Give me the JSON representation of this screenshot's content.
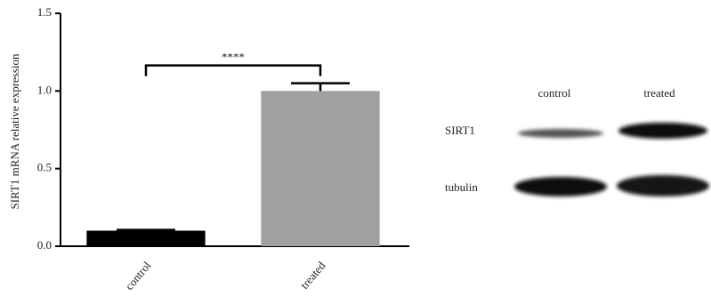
{
  "chart_data": {
    "type": "bar",
    "ylabel": "SIRT1 mRNA relative expression",
    "categories": [
      "control",
      "treated"
    ],
    "values": [
      0.1,
      1.0
    ],
    "errors": [
      0.005,
      0.05
    ],
    "colors": [
      "#000000",
      "#a0a0a2"
    ],
    "ylim": [
      0,
      1.5
    ],
    "yticks": [
      {
        "value": 0,
        "label": "0.0"
      },
      0.5,
      {
        "value": 1,
        "label": "1.0"
      },
      1.5
    ],
    "annotation": "****"
  },
  "blot": {
    "lanes": [
      "control",
      "treated"
    ],
    "rows": [
      "SIRT1",
      "tubulin"
    ]
  }
}
